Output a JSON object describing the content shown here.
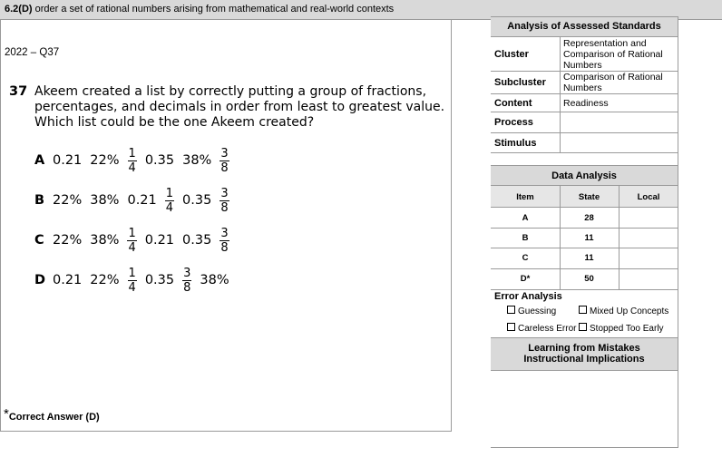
{
  "standard": {
    "code": "6.2(D)",
    "text": " order a set of rational numbers arising from mathematical and real-world contexts"
  },
  "year_label": "2022 – Q37",
  "question": {
    "number": "37",
    "lines": [
      "Akeem created a list by correctly putting a group of fractions,",
      "percentages, and decimals in order from least to greatest value.",
      "Which list could be the one Akeem created?"
    ]
  },
  "choices": [
    {
      "letter": "A",
      "items": [
        "0.21",
        "22%",
        "1/4",
        "0.35",
        "38%",
        "3/8"
      ]
    },
    {
      "letter": "B",
      "items": [
        "22%",
        "38%",
        "0.21",
        "1/4",
        "0.35",
        "3/8"
      ]
    },
    {
      "letter": "C",
      "items": [
        "22%",
        "38%",
        "1/4",
        "0.21",
        "0.35",
        "3/8"
      ]
    },
    {
      "letter": "D",
      "items": [
        "0.21",
        "22%",
        "1/4",
        "0.35",
        "3/8",
        "38%"
      ]
    }
  ],
  "footnote": {
    "star": "*",
    "text": "Correct Answer (D)"
  },
  "analysis": {
    "title": "Analysis of Assessed Standards",
    "rows": [
      {
        "label": "Cluster",
        "value": "Representation and Comparison of Rational Numbers"
      },
      {
        "label": "Subcluster",
        "value": "Comparison of Rational Numbers"
      },
      {
        "label": "Content",
        "value": "Readiness"
      },
      {
        "label": "Process",
        "value": ""
      },
      {
        "label": "Stimulus",
        "value": ""
      }
    ]
  },
  "data_analysis": {
    "title": "Data Analysis",
    "headers": [
      "Item",
      "State",
      "Local"
    ],
    "rows": [
      {
        "item": "A",
        "state": "28",
        "local": ""
      },
      {
        "item": "B",
        "state": "11",
        "local": ""
      },
      {
        "item": "C",
        "state": "11",
        "local": ""
      },
      {
        "item": "D*",
        "state": "50",
        "local": ""
      }
    ]
  },
  "error_analysis": {
    "title": "Error Analysis",
    "options": [
      "Guessing",
      "Mixed Up Concepts",
      "Careless Error",
      "Stopped Too Early"
    ]
  },
  "learning": {
    "line1": "Learning from Mistakes",
    "line2": "Instructional Implications"
  }
}
